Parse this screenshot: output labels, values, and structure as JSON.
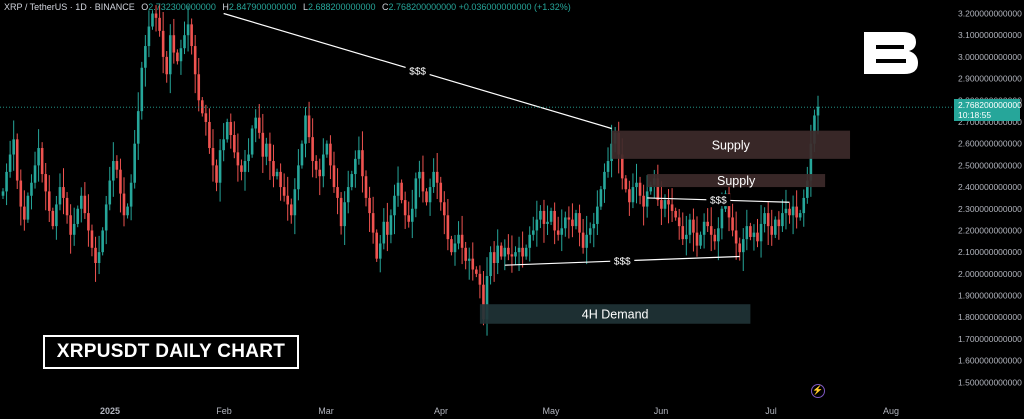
{
  "header": {
    "symbol": "XRP / TetherUS · 1D · BINANCE",
    "open_label": "O",
    "open": "2.732300000000",
    "high_label": "H",
    "high": "2.847900000000",
    "low_label": "L",
    "low": "2.688200000000",
    "close_label": "C",
    "close": "2.768200000000",
    "change": "+0.036000000000 (+1.32%)"
  },
  "title_box": "XRPUSDT DAILY CHART",
  "price_tag": {
    "price": "2.768200000000",
    "countdown": "10:18:55"
  },
  "colors": {
    "up": "#26a69a",
    "down": "#ef5350",
    "zone_supply": "#3d2a2a",
    "zone_demand": "#1f3336"
  },
  "icons": {
    "logo": "brand-b-logo",
    "bolt": "lightning-icon"
  },
  "chart_data": {
    "type": "candlestick",
    "title": "XRPUSDT DAILY CHART",
    "xlabel": "",
    "ylabel": "",
    "x_ticks": [
      "2025",
      "Feb",
      "Mar",
      "Apr",
      "May",
      "Jun",
      "Jul",
      "Aug"
    ],
    "y_ticks": [
      "3.200000000000",
      "3.100000000000",
      "3.000000000000",
      "2.900000000000",
      "2.800000000000",
      "2.700000000000",
      "2.600000000000",
      "2.500000000000",
      "2.400000000000",
      "2.300000000000",
      "2.200000000000",
      "2.100000000000",
      "2.000000000000",
      "1.900000000000",
      "1.800000000000",
      "1.700000000000",
      "1.600000000000",
      "1.500000000000"
    ],
    "ylim": [
      1.46,
      3.23
    ],
    "grid": false,
    "last_price": 2.7682,
    "closes": [
      2.38,
      2.47,
      2.55,
      2.62,
      2.43,
      2.31,
      2.25,
      2.36,
      2.42,
      2.5,
      2.58,
      2.46,
      2.38,
      2.29,
      2.22,
      2.32,
      2.4,
      2.35,
      2.27,
      2.18,
      2.23,
      2.3,
      2.36,
      2.28,
      2.2,
      2.12,
      2.05,
      2.1,
      2.2,
      2.32,
      2.43,
      2.52,
      2.48,
      2.37,
      2.27,
      2.31,
      2.42,
      2.6,
      2.75,
      2.95,
      3.05,
      3.14,
      3.2,
      3.18,
      3.12,
      3.0,
      2.92,
      3.1,
      3.02,
      2.98,
      3.04,
      3.1,
      3.15,
      3.05,
      2.92,
      2.8,
      2.74,
      2.7,
      2.58,
      2.5,
      2.42,
      2.57,
      2.62,
      2.7,
      2.64,
      2.56,
      2.5,
      2.47,
      2.52,
      2.55,
      2.67,
      2.72,
      2.65,
      2.54,
      2.6,
      2.52,
      2.45,
      2.47,
      2.4,
      2.36,
      2.32,
      2.27,
      2.39,
      2.5,
      2.6,
      2.73,
      2.63,
      2.52,
      2.48,
      2.45,
      2.55,
      2.6,
      2.5,
      2.4,
      2.35,
      2.22,
      2.33,
      2.4,
      2.46,
      2.53,
      2.57,
      2.45,
      2.35,
      2.28,
      2.19,
      2.07,
      2.14,
      2.24,
      2.18,
      2.27,
      2.36,
      2.42,
      2.34,
      2.27,
      2.24,
      2.3,
      2.44,
      2.47,
      2.38,
      2.33,
      2.4,
      2.47,
      2.42,
      2.33,
      2.27,
      2.16,
      2.1,
      2.14,
      2.18,
      2.12,
      2.06,
      2.07,
      2.02,
      2.0,
      1.95,
      1.79,
      1.99,
      2.1,
      2.05,
      2.13,
      2.08,
      2.12,
      2.09,
      2.08,
      2.1,
      2.12,
      2.08,
      2.12,
      2.18,
      2.2,
      2.25,
      2.29,
      2.23,
      2.24,
      2.29,
      2.2,
      2.18,
      2.21,
      2.26,
      2.25,
      2.22,
      2.28,
      2.19,
      2.12,
      2.18,
      2.21,
      2.23,
      2.31,
      2.39,
      2.47,
      2.52,
      2.6,
      2.65,
      2.55,
      2.44,
      2.39,
      2.33,
      2.4,
      2.42,
      2.36,
      2.31,
      2.38,
      2.41,
      2.44,
      2.34,
      2.3,
      2.34,
      2.32,
      2.29,
      2.26,
      2.22,
      2.16,
      2.18,
      2.25,
      2.19,
      2.13,
      2.18,
      2.24,
      2.22,
      2.18,
      2.15,
      2.21,
      2.3,
      2.37,
      2.26,
      2.2,
      2.14,
      2.1,
      2.16,
      2.22,
      2.17,
      2.19,
      2.15,
      2.23,
      2.28,
      2.22,
      2.18,
      2.25,
      2.22,
      2.28,
      2.3,
      2.27,
      2.31,
      2.26,
      2.28,
      2.35,
      2.43,
      2.6,
      2.73,
      2.77
    ],
    "annotations": [
      {
        "type": "zone",
        "label": "Supply",
        "x_from_index": 171,
        "x_to_index": 238,
        "y_from": 2.53,
        "y_to": 2.66
      },
      {
        "type": "zone",
        "label": "Supply",
        "x_from_index": 181,
        "x_to_index": 231,
        "y_from": 2.4,
        "y_to": 2.46
      },
      {
        "type": "zone",
        "label": "4H Demand",
        "x_from_index": 134,
        "x_to_index": 210,
        "y_from": 1.77,
        "y_to": 1.86
      },
      {
        "type": "line",
        "label": "$$$",
        "from_index": 62,
        "from_y": 3.2,
        "to_index": 171,
        "to_y": 2.67
      },
      {
        "type": "line",
        "label": "$$$",
        "from_index": 181,
        "from_y": 2.35,
        "to_index": 221,
        "to_y": 2.33
      },
      {
        "type": "line",
        "label": "$$$",
        "from_index": 141,
        "from_y": 2.04,
        "to_index": 207,
        "to_y": 2.08
      }
    ]
  }
}
